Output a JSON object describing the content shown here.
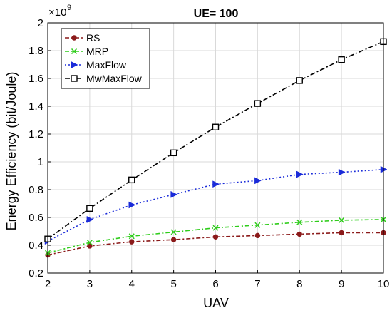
{
  "chart_data": {
    "type": "line",
    "title": "UE= 100",
    "xlabel": "UAV",
    "ylabel": "Energy Efficiency (bit/Joule)",
    "y_multiplier_base": "×10",
    "y_multiplier_exp": "9",
    "x": [
      2,
      3,
      4,
      5,
      6,
      7,
      8,
      9,
      10
    ],
    "xlim": [
      2,
      10
    ],
    "ylim": [
      0.2,
      2
    ],
    "x_ticks": [
      "2",
      "3",
      "4",
      "5",
      "6",
      "7",
      "8",
      "9",
      "10"
    ],
    "y_ticks": [
      "0.2",
      "0.4",
      "0.6",
      "0.8",
      "1",
      "1.2",
      "1.4",
      "1.6",
      "1.8",
      "2"
    ],
    "grid": true,
    "legend_position": "top-left",
    "series": [
      {
        "name": "RS",
        "color": "#8b1a1a",
        "marker": "circle",
        "dash": "6,3,2,3",
        "values": [
          0.33,
          0.395,
          0.425,
          0.44,
          0.46,
          0.47,
          0.48,
          0.49,
          0.49
        ]
      },
      {
        "name": "MRP",
        "color": "#2ecc1a",
        "marker": "x",
        "dash": "6,3,2,3",
        "values": [
          0.345,
          0.42,
          0.465,
          0.495,
          0.525,
          0.545,
          0.565,
          0.58,
          0.585
        ]
      },
      {
        "name": "MaxFlow",
        "color": "#1a2bd9",
        "marker": "triangle-right",
        "dash": "2,3",
        "values": [
          0.43,
          0.585,
          0.69,
          0.765,
          0.84,
          0.865,
          0.91,
          0.925,
          0.945
        ]
      },
      {
        "name": "MwMaxFlow",
        "color": "#000000",
        "marker": "square",
        "dash": "7,3,2,3",
        "values": [
          0.445,
          0.665,
          0.87,
          1.065,
          1.25,
          1.42,
          1.585,
          1.735,
          1.865
        ]
      }
    ]
  }
}
